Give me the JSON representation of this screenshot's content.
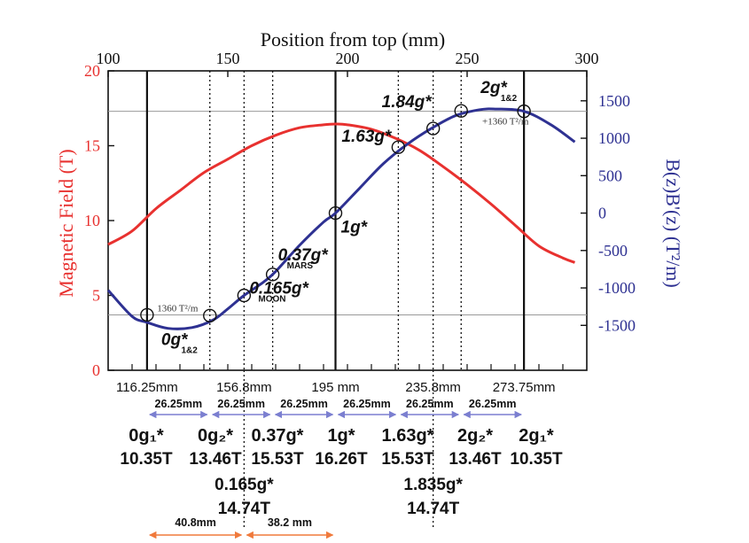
{
  "chart_data": {
    "type": "line",
    "title": "",
    "top_axis": {
      "label": "Position from top (mm)",
      "range": [
        100,
        300
      ],
      "ticks": [
        "100",
        "150",
        "200",
        "250",
        "300"
      ]
    },
    "left_axis": {
      "label": "Magnetic Field (T)",
      "range": [
        0,
        20
      ],
      "ticks": [
        "0",
        "5",
        "10",
        "15",
        "20"
      ],
      "color": "#e8312f"
    },
    "right_axis": {
      "label": "B(z)B'(z) (T²/m)",
      "range": [
        -2100,
        1900
      ],
      "ticks": [
        "-1500",
        "-1000",
        "-500",
        "0",
        "500",
        "1000",
        "1500"
      ],
      "color": "#2e3192"
    },
    "grid": false,
    "series": [
      {
        "color": "#e8312f",
        "axis": "left",
        "x": [
          100,
          110,
          120,
          130,
          140,
          150,
          160,
          170,
          180,
          190,
          195,
          200,
          210,
          220,
          230,
          240,
          250,
          260,
          270,
          280,
          290,
          295
        ],
        "y": [
          8.4,
          9.3,
          10.8,
          12.0,
          13.2,
          14.1,
          15.0,
          15.7,
          16.2,
          16.4,
          16.45,
          16.4,
          16.1,
          15.5,
          14.7,
          13.6,
          12.4,
          11.1,
          9.7,
          8.3,
          7.5,
          7.2
        ]
      },
      {
        "color": "#2e3192",
        "axis": "right",
        "x": [
          100,
          110,
          116.25,
          125,
          135,
          143.75,
          150,
          156.8,
          165,
          170,
          180,
          190,
          195,
          205,
          215,
          225,
          235,
          245,
          255,
          262,
          273.75,
          285,
          295
        ],
        "y": [
          -1030,
          -1380,
          -1460,
          -1540,
          -1530,
          -1430,
          -1280,
          -1100,
          -920,
          -780,
          -430,
          -120,
          0,
          330,
          660,
          920,
          1130,
          1300,
          1380,
          1390,
          1360,
          1180,
          950
        ]
      }
    ],
    "vertical_markers": [
      {
        "x": 116.25,
        "style": "solid"
      },
      {
        "x": 142.5,
        "style": "dotted"
      },
      {
        "x": 156.8,
        "style": "dotted"
      },
      {
        "x": 168.75,
        "style": "dotted"
      },
      {
        "x": 195,
        "style": "solid"
      },
      {
        "x": 221.25,
        "style": "dotted"
      },
      {
        "x": 235.8,
        "style": "dotted"
      },
      {
        "x": 247.5,
        "style": "dotted"
      },
      {
        "x": 273.75,
        "style": "solid"
      }
    ],
    "horizontal_reference_lines": [
      {
        "value": 1360,
        "label": "+1360 T²/m"
      },
      {
        "value": -1360,
        "label": "1360 T²/m"
      }
    ],
    "points": [
      {
        "x": 116.25,
        "y": -1360,
        "label": "0g*",
        "sub": "1&2"
      },
      {
        "x": 142.5,
        "y": -1370
      },
      {
        "x": 156.8,
        "y": -1100,
        "label": "0.165g*",
        "sub": "MOON"
      },
      {
        "x": 168.75,
        "y": -820,
        "label": "0.37g*",
        "sub": "MARS"
      },
      {
        "x": 195,
        "y": 0,
        "label": "1g*"
      },
      {
        "x": 221.25,
        "y": 880,
        "label": "1.63g*"
      },
      {
        "x": 235.8,
        "y": 1130,
        "label": "1.84g*"
      },
      {
        "x": 247.5,
        "y": 1365,
        "label": "2g*",
        "sub": "1&2"
      },
      {
        "x": 273.75,
        "y": 1360
      }
    ],
    "position_labels": [
      "116.25mm",
      "156.8mm",
      "195 mm",
      "235.8mm",
      "273.75mm"
    ],
    "spacing_labels": [
      "26.25mm",
      "26.25mm",
      "26.25mm",
      "26.25mm",
      "26.25mm",
      "26.25mm"
    ],
    "lower_spacing_labels": [
      "40.8mm",
      "38.2 mm"
    ],
    "table": {
      "row1": [
        "0g₁*",
        "0g₂*",
        "0.37g*",
        "1g*",
        "1.63g*",
        "2g₂*",
        "2g₁*"
      ],
      "row2": [
        "10.35T",
        "13.46T",
        "15.53T",
        "16.26T",
        "15.53T",
        "13.46T",
        "10.35T"
      ],
      "extra": [
        {
          "g": "0.165g*",
          "t": "14.74T"
        },
        {
          "g": "1.835g*",
          "t": "14.74T"
        }
      ]
    }
  }
}
